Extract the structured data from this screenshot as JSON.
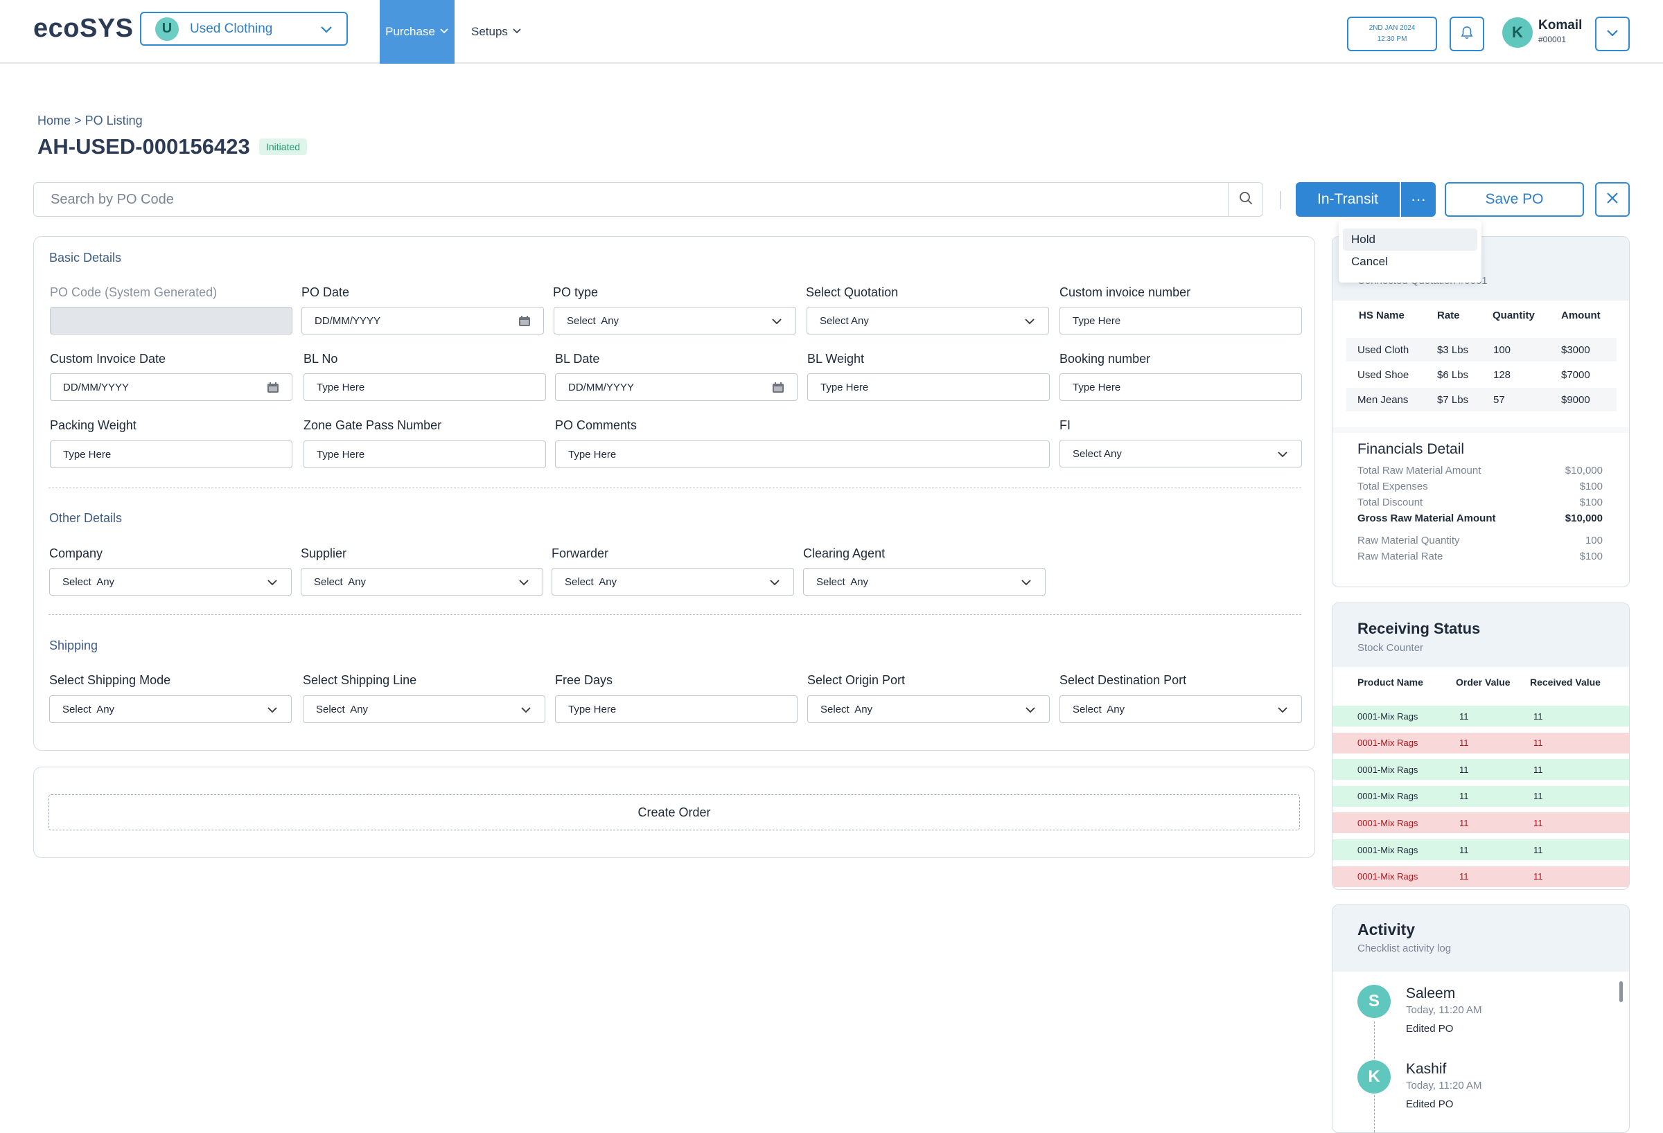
{
  "header": {
    "logo": "ecoSYS",
    "workspace": {
      "avatar": "U",
      "name": "Used Clothing"
    },
    "nav": {
      "purchase": "Purchase",
      "setups": "Setups"
    },
    "date_line1": "2ND JAN 2024",
    "date_line2": "12:30 PM",
    "user": {
      "avatar": "K",
      "name": "Komail",
      "id": "#00001"
    }
  },
  "breadcrumb": {
    "home": "Home",
    "sep": ">",
    "current": "PO Listing"
  },
  "page": {
    "title": "AH-USED-000156423",
    "status": "Initiated"
  },
  "search": {
    "placeholder": "Search by PO Code"
  },
  "actions": {
    "transit": "In-Transit",
    "more": "···",
    "save": "Save PO"
  },
  "menu": {
    "items": [
      "Hold",
      "Cancel"
    ]
  },
  "basic": {
    "title": "Basic Details",
    "po_code_label": "PO Code (System Generated)",
    "po_date_label": "PO Date",
    "po_date_value": "DD/MM/YYYY",
    "po_type_label": "PO type",
    "po_type_value": "Select  Any",
    "quotation_label": "Select Quotation",
    "quotation_value": "Select Any",
    "invoice_no_label": "Custom invoice number",
    "invoice_no_value": "Type Here",
    "invoice_date_label": "Custom Invoice Date",
    "invoice_date_value": "DD/MM/YYYY",
    "bl_no_label": "BL No",
    "bl_no_value": "Type Here",
    "bl_date_label": "BL Date",
    "bl_date_value": "DD/MM/YYYY",
    "bl_weight_label": "BL Weight",
    "bl_weight_value": "Type Here",
    "booking_label": "Booking number",
    "booking_value": "Type Here",
    "packing_label": "Packing Weight",
    "packing_value": "Type Here",
    "zone_label": "Zone Gate Pass Number",
    "zone_value": "Type Here",
    "comments_label": "PO Comments",
    "comments_value": "Type Here",
    "fi_label": "FI",
    "fi_value": "Select Any"
  },
  "other": {
    "title": "Other Details",
    "company_label": "Company",
    "company_value": "Select  Any",
    "supplier_label": "Supplier",
    "supplier_value": "Select  Any",
    "forwarder_label": "Forwarder",
    "forwarder_value": "Select  Any",
    "agent_label": "Clearing Agent",
    "agent_value": "Select  Any"
  },
  "shipping": {
    "title": "Shipping",
    "mode_label": "Select Shipping Mode",
    "mode_value": "Select  Any",
    "line_label": "Select Shipping Line",
    "line_value": "Select  Any",
    "free_label": "Free Days",
    "free_value": "Type Here",
    "origin_label": "Select Origin Port",
    "origin_value": "Select  Any",
    "dest_label": "Select Destination Port",
    "dest_value": "Select  Any"
  },
  "create_order": "Create Order",
  "quotation_panel": {
    "subtitle_partial": "Connected Quotation #0001",
    "headers": [
      "HS Name",
      "Rate",
      "Quantity",
      "Amount"
    ],
    "rows": [
      [
        "Used Cloth",
        "$3 Lbs",
        "100",
        "$3000"
      ],
      [
        "Used Shoe",
        "$6 Lbs",
        "128",
        "$7000"
      ],
      [
        "Men Jeans",
        "$7 Lbs",
        "57",
        "$9000"
      ]
    ]
  },
  "financials": {
    "title": "Financials Detail",
    "rows": [
      {
        "label": "Total Raw Material Amount",
        "value": "$10,000"
      },
      {
        "label": "Total Expenses",
        "value": "$100"
      },
      {
        "label": "Total Discount",
        "value": "$100"
      },
      {
        "label": "Gross Raw Material Amount",
        "value": "$10,000"
      },
      {
        "label": "Raw Material Quantity",
        "value": "100"
      },
      {
        "label": "Raw Material Rate",
        "value": "$100"
      }
    ]
  },
  "receiving": {
    "title": "Receiving Status",
    "subtitle": "Stock Counter",
    "headers": [
      "Product Name",
      "Order Value",
      "Received Value"
    ],
    "rows": [
      {
        "name": "0001-Mix Rags",
        "order": "11",
        "received": "11",
        "status": "ok"
      },
      {
        "name": "0001-Mix Rags",
        "order": "11",
        "received": "11",
        "status": "bad"
      },
      {
        "name": "0001-Mix Rags",
        "order": "11",
        "received": "11",
        "status": "ok"
      },
      {
        "name": "0001-Mix Rags",
        "order": "11",
        "received": "11",
        "status": "ok"
      },
      {
        "name": "0001-Mix Rags",
        "order": "11",
        "received": "11",
        "status": "bad"
      },
      {
        "name": "0001-Mix Rags",
        "order": "11",
        "received": "11",
        "status": "ok"
      },
      {
        "name": "0001-Mix Rags",
        "order": "11",
        "received": "11",
        "status": "bad"
      }
    ]
  },
  "activity": {
    "title": "Activity",
    "subtitle": "Checklist activity log",
    "items": [
      {
        "avatar": "S",
        "name": "Saleem",
        "time": "Today, 11:20 AM",
        "action": "Edited PO"
      },
      {
        "avatar": "K",
        "name": "Kashif",
        "time": "Today, 11:20 AM",
        "action": "Edited PO"
      }
    ]
  },
  "colors": {
    "accent": "#2f86d4",
    "ok_row": "#d9f7e6",
    "bad_row": "#f9d8da",
    "avatar": "#5fc7bd"
  }
}
